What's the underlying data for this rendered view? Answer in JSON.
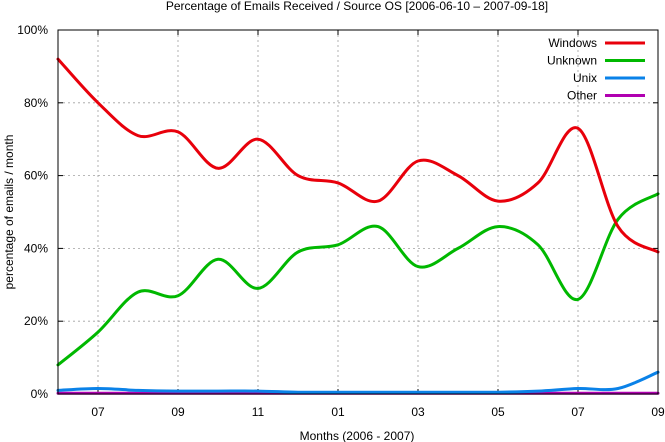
{
  "chart_data": {
    "type": "line",
    "title": "Percentage of Emails Received / Source OS [2006-06-10 – 2007-09-18]",
    "xlabel": "Months (2006 - 2007)",
    "ylabel": "percentage of emails / month",
    "ylim": [
      0,
      100
    ],
    "y_ticks": [
      "0%",
      "20%",
      "40%",
      "60%",
      "80%",
      "100%"
    ],
    "x_ticks": [
      "07",
      "09",
      "11",
      "01",
      "03",
      "05",
      "07",
      "09"
    ],
    "grid": true,
    "legend_position": "top-right",
    "x": [
      "2006-06",
      "2006-07",
      "2006-08",
      "2006-09",
      "2006-10",
      "2006-11",
      "2006-12",
      "2007-01",
      "2007-02",
      "2007-03",
      "2007-04",
      "2007-05",
      "2007-06",
      "2007-07",
      "2007-08",
      "2007-09"
    ],
    "series": [
      {
        "name": "Windows",
        "color": "#e8000b",
        "values": [
          92,
          80,
          71,
          72,
          62,
          70,
          60,
          58,
          53,
          64,
          60,
          53,
          58,
          73,
          46,
          39
        ]
      },
      {
        "name": "Unknown",
        "color": "#00b800",
        "values": [
          8,
          17,
          28,
          27,
          37,
          29,
          39,
          41,
          46,
          35,
          40,
          46,
          41,
          26,
          48,
          55
        ]
      },
      {
        "name": "Unix",
        "color": "#0a82e8",
        "values": [
          1,
          1.5,
          1,
          0.8,
          0.8,
          0.8,
          0.5,
          0.5,
          0.5,
          0.5,
          0.5,
          0.5,
          0.8,
          1.5,
          1.5,
          6
        ]
      },
      {
        "name": "Other",
        "color": "#b000b0",
        "values": [
          0.2,
          0.2,
          0.2,
          0.2,
          0.2,
          0.2,
          0.2,
          0.2,
          0.2,
          0.2,
          0.2,
          0.2,
          0.2,
          0.2,
          0.2,
          0.2
        ]
      }
    ]
  }
}
